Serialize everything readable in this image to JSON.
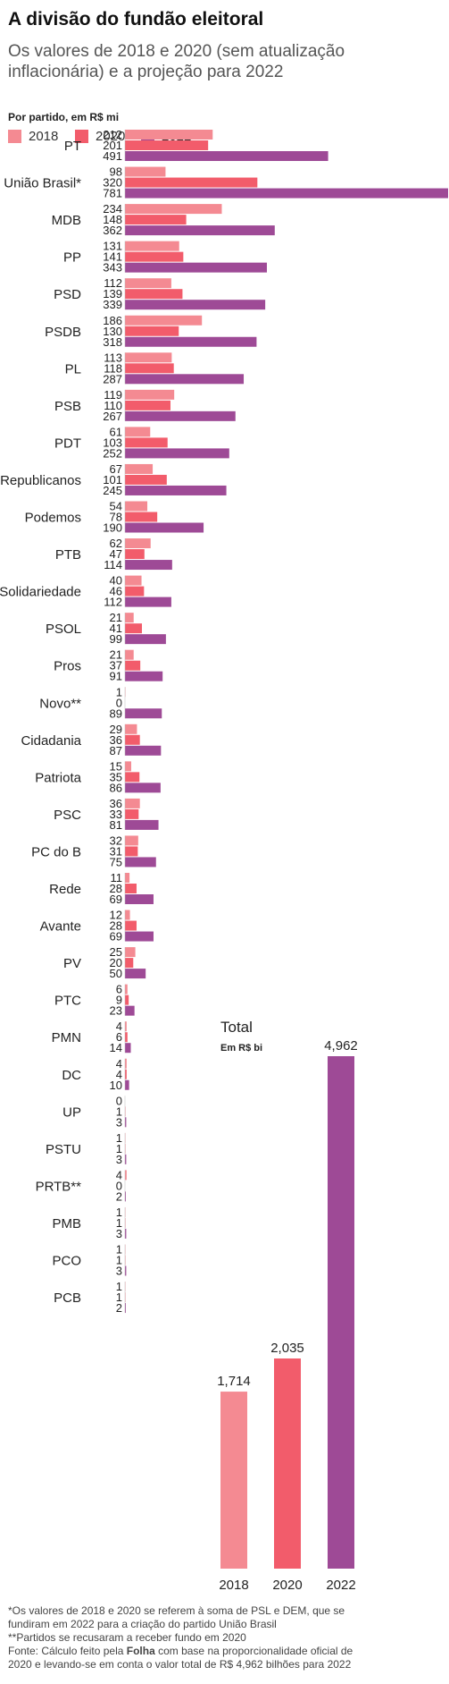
{
  "title": "A divisão do fundão eleitoral",
  "subtitle": "Os valores de 2018 e 2020 (sem atualização inflacionária) e a projeção para 2022",
  "unit_label": "Por partido, em R$ mi",
  "colors": {
    "2018": "#f48a92",
    "2020": "#f25c6b",
    "2022": "#9e4a96"
  },
  "chart_data": [
    {
      "type": "bar",
      "orientation": "horizontal",
      "title": "",
      "ylabel": "Por partido, em R$ mi",
      "xlabel": "",
      "legend": [
        "2018",
        "2020",
        "2022"
      ],
      "legend_position": "top-left",
      "grid": false,
      "xlim": [
        0,
        781
      ],
      "categories": [
        "PT",
        "União Brasil*",
        "MDB",
        "PP",
        "PSD",
        "PSDB",
        "PL",
        "PSB",
        "PDT",
        "Republicanos",
        "Podemos",
        "PTB",
        "Solidariedade",
        "PSOL",
        "Pros",
        "Novo**",
        "Cidadania",
        "Patriota",
        "PSC",
        "PC do B",
        "Rede",
        "Avante",
        "PV",
        "PTC",
        "PMN",
        "DC",
        "UP",
        "PSTU",
        "PRTB**",
        "PMB",
        "PCO",
        "PCB"
      ],
      "series": [
        {
          "name": "2018",
          "values": [
            212,
            98,
            234,
            131,
            112,
            186,
            113,
            119,
            61,
            67,
            54,
            62,
            40,
            21,
            21,
            1,
            29,
            15,
            36,
            32,
            11,
            12,
            25,
            6,
            4,
            4,
            0,
            1,
            4,
            1,
            1,
            1
          ]
        },
        {
          "name": "2020",
          "values": [
            201,
            320,
            148,
            141,
            139,
            130,
            118,
            110,
            103,
            101,
            78,
            47,
            46,
            41,
            37,
            0,
            36,
            35,
            33,
            31,
            28,
            28,
            20,
            9,
            6,
            4,
            1,
            1,
            0,
            1,
            1,
            1
          ]
        },
        {
          "name": "2022",
          "values": [
            491,
            781,
            362,
            343,
            339,
            318,
            287,
            267,
            252,
            245,
            190,
            114,
            112,
            99,
            91,
            89,
            87,
            86,
            81,
            75,
            69,
            69,
            50,
            23,
            14,
            10,
            3,
            3,
            2,
            3,
            3,
            2
          ]
        }
      ]
    },
    {
      "type": "bar",
      "orientation": "vertical",
      "title": "Total",
      "ylabel": "Em R$ bi",
      "xlabel": "",
      "grid": false,
      "ylim": [
        0,
        4.962
      ],
      "categories": [
        "2018",
        "2020",
        "2022"
      ],
      "values": [
        1.714,
        2.035,
        4.962
      ],
      "value_labels": [
        "1,714",
        "2,035",
        "4,962"
      ]
    }
  ],
  "footnotes": [
    "*Os valores de 2018 e 2020 se referem à soma de PSL e DEM, que se",
    "fundiram em 2022 para a criação do partido União Brasil",
    "**Partidos se recusaram a receber fundo em 2020"
  ],
  "source": {
    "prefix": "Fonte: Cálculo feito pela ",
    "brand": "Folha",
    "suffix": " com base na proporcionalidade oficial de",
    "line2": "2020 e levando-se em conta o valor total de R$ 4,962 bilhões para 2022"
  }
}
